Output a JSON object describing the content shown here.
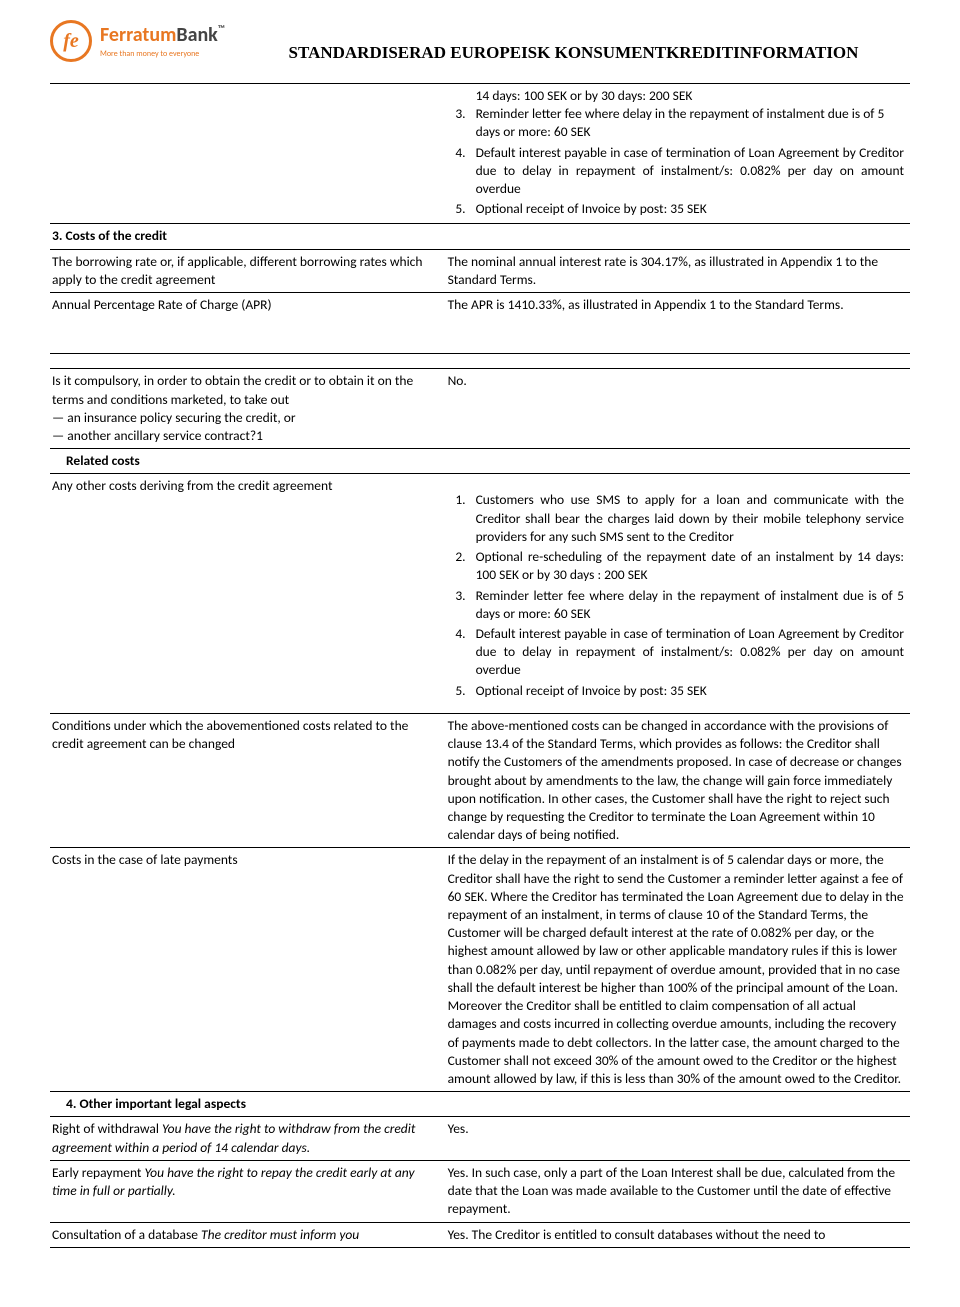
{
  "logo": {
    "mark": "fe",
    "name_part1": "Ferratum",
    "name_part2": "Bank",
    "tagline": "More than money to everyone"
  },
  "doc_title": "STANDARDISERAD EUROPEISK KONSUMENTKREDITINFORMATION",
  "top_list": {
    "line0": "14 days: 100 SEK or by 30 days: 200 SEK",
    "items": [
      {
        "n": "3.",
        "t": "Reminder letter fee where delay in the repayment of instalment due is of 5 days or more: 60 SEK"
      },
      {
        "n": "4.",
        "t": "Default interest payable in case of termination of Loan Agreement by Creditor due to delay in repayment of instalment/s: 0.082% per day on amount overdue",
        "justify": true
      },
      {
        "n": "5.",
        "t": "Optional receipt of Invoice by post: 35 SEK"
      }
    ]
  },
  "section3_head": "3. Costs of the credit",
  "row_borrowing": {
    "l": "The borrowing rate or, if applicable, different borrowing rates which apply to the credit agreement",
    "r": "The nominal annual interest rate is 304.17%, as illustrated in Appendix 1 to the Standard Terms."
  },
  "row_apr": {
    "l": "Annual Percentage Rate of Charge (APR)",
    "r": "The APR is 1410.33%, as illustrated in Appendix 1 to the Standard Terms."
  },
  "row_compulsory": {
    "l1": "Is it compulsory, in order to obtain the credit or to obtain it on the terms and conditions marketed, to take out",
    "l2": "— an insurance policy securing the credit, or",
    "l3": "— another ancillary service contract?1",
    "r": "No."
  },
  "row_related_head": "Related costs",
  "row_other_costs_l": "Any other costs deriving from the credit agreement",
  "other_costs_list": [
    {
      "n": "1.",
      "t": "Customers who use SMS to apply for a loan and communicate with the Creditor shall bear the charges laid down by their mobile telephony service providers for any such SMS sent to the Creditor",
      "justify": true
    },
    {
      "n": "2.",
      "t": "Optional re-scheduling of the repayment date of an instalment by 14 days: 100 SEK or by 30 days : 200 SEK",
      "justify": true
    },
    {
      "n": "3.",
      "t": "Reminder letter fee where delay in the repayment of instalment due is of 5 days or more: 60 SEK",
      "justify": true
    },
    {
      "n": "4.",
      "t": "Default interest payable in case of termination of Loan Agreement by Creditor due to delay in repayment of instalment/s: 0.082% per day on amount overdue",
      "justify": true
    },
    {
      "n": "5.",
      "t": "Optional receipt of Invoice by post: 35 SEK"
    }
  ],
  "row_conditions": {
    "l": "Conditions under which the abovementioned costs related to the credit agreement can be changed",
    "r": "The above-mentioned costs can be changed in accordance with the provisions of clause 13.4 of the Standard Terms, which provides as follows: the Creditor shall notify the Customers of the amendments proposed. In case of decrease or changes brought about by amendments to the law, the change will gain force immediately upon notification. In other cases, the Customer shall have the right to reject such change by requesting the Creditor to terminate the Loan Agreement within 10 calendar days of being notified."
  },
  "row_late": {
    "l": "Costs in the case of late payments",
    "r": "If the delay in the repayment of an instalment is of 5 calendar days or more, the Creditor shall have the right to send the Customer a reminder letter against a fee of 60 SEK. Where the Creditor has terminated the Loan Agreement due to delay in the repayment of an instalment, in terms of clause 10 of the Standard Terms, the Customer will be charged default interest at the rate of 0.082% per day, or the highest amount allowed by law or other applicable mandatory rules if this is lower than 0.082% per day, until repayment of overdue amount, provided that in no case shall the default interest be higher than 100% of the principal amount of the Loan. Moreover the Creditor shall be entitled to claim compensation of all actual damages and costs incurred in collecting overdue amounts, including the recovery of payments made to debt collectors. In the latter case, the amount charged to the Customer shall not exceed 30% of the amount owed to the Creditor or the highest amount allowed by law, if this is less than 30% of the amount owed to the Creditor."
  },
  "section4_head": "4. Other important legal aspects",
  "row_withdrawal": {
    "l_plain": "Right of withdrawal ",
    "l_italic": "You have the right to withdraw from the credit agreement within a period of 14 calendar days.",
    "r": "Yes."
  },
  "row_early": {
    "l_plain": "Early repayment ",
    "l_italic": "You have the right to repay the credit early at any time in full or partially.",
    "r": "Yes. In such case, only a part of the Loan Interest shall be due, calculated from the date that the Loan was made available to the Customer until the date of effective repayment."
  },
  "row_db": {
    "l_plain": "Consultation of a database ",
    "l_italic": "The creditor must inform you",
    "r": "Yes. The Creditor is entitled to consult databases without the need to"
  }
}
